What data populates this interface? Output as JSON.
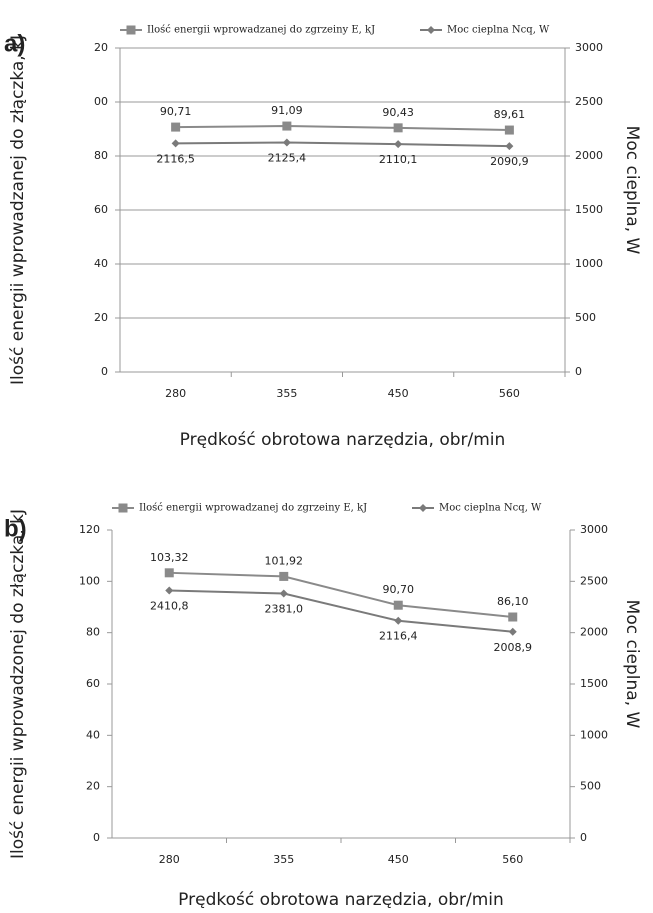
{
  "chart_data": [
    {
      "type": "line",
      "label": "a)",
      "xlabel": "Prędkość obrotowa narzędzia, obr/min",
      "ylabel": "Ilość energii wprowadzanej do złączka, kJ",
      "y2label": "Moc cieplna, W",
      "categories": [
        "280",
        "355",
        "450",
        "560"
      ],
      "ylim": [
        0,
        120
      ],
      "yticks": [
        0,
        20,
        40,
        60,
        80,
        {
          "value": 100,
          "label": "00"
        },
        {
          "value": 120,
          "label": "20"
        }
      ],
      "y2lim": [
        0,
        3000
      ],
      "y2ticks": [
        0,
        500,
        1000,
        1500,
        2000,
        2500,
        3000
      ],
      "grid": true,
      "series": [
        {
          "name": "Ilość energii wprowadzanej do zgrzeiny E, kJ",
          "color": "#8a8a8a",
          "marker": "square",
          "values": [
            90.71,
            91.09,
            90.43,
            89.61
          ],
          "value_labels": [
            "90,71",
            "91,09",
            "90,43",
            "89,61"
          ]
        },
        {
          "name": "Moc cieplna Ncq, W",
          "color": "#7a7a7a",
          "marker": "diamond",
          "axis": "y2",
          "values": [
            2116.5,
            2125.4,
            2110.1,
            2090.9
          ],
          "value_labels": [
            "2116,5",
            "2125,4",
            "2110,1",
            "2090,9"
          ]
        }
      ]
    },
    {
      "type": "line",
      "label": "b)",
      "xlabel": "Prędkość obrotowa narzędzia, obr/min",
      "ylabel": "Ilość energii wprowadzonej do złączka, kJ",
      "y2label": "Moc cieplna, W",
      "categories": [
        "280",
        "355",
        "450",
        "560"
      ],
      "ylim": [
        0,
        120
      ],
      "yticks": [
        0,
        20,
        40,
        60,
        80,
        100,
        120
      ],
      "y2lim": [
        0,
        3000
      ],
      "y2ticks": [
        0,
        500,
        1000,
        1500,
        2000,
        2500,
        3000
      ],
      "grid": false,
      "series": [
        {
          "name": "Ilość energii wprowadzanej do zgrzeiny E, kJ",
          "color": "#8a8a8a",
          "marker": "square",
          "values": [
            103.32,
            101.92,
            90.7,
            86.1
          ],
          "value_labels": [
            "103,32",
            "101,92",
            "90,70",
            "86,10"
          ]
        },
        {
          "name": "Moc cieplna Ncq, W",
          "color": "#7a7a7a",
          "marker": "diamond",
          "axis": "y2",
          "values": [
            2410.8,
            2381.0,
            2116.4,
            2008.9
          ],
          "value_labels": [
            "2410,8",
            "2381,0",
            "2116,4",
            "2008,9"
          ]
        }
      ]
    }
  ]
}
